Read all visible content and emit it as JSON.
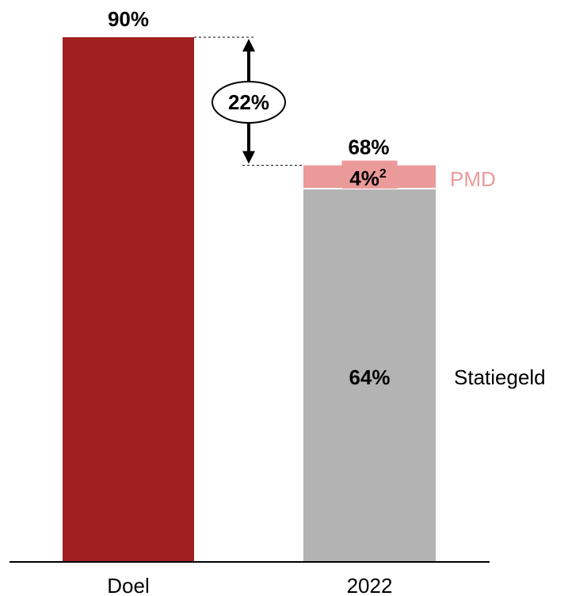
{
  "chart_data": {
    "type": "bar",
    "stacked": true,
    "categories": [
      "Doel",
      "2022"
    ],
    "series": [
      {
        "name": "Statiegeld",
        "values": [
          90,
          64
        ],
        "value_labels": [
          "90%",
          "64%"
        ]
      },
      {
        "name": "PMD",
        "values": [
          0,
          4
        ],
        "value_labels": [
          "",
          "4%"
        ],
        "footnote": "2"
      }
    ],
    "totals": [
      90,
      68
    ],
    "total_labels": [
      "90%",
      "68%"
    ],
    "gap": {
      "value": 22,
      "label": "22%"
    },
    "ylim": [
      0,
      90
    ],
    "colors": {
      "target": "#a11f20",
      "base": "#b3b3b3",
      "pmd": "#eb9a9a",
      "pmd_text": "#eb9a9a",
      "text": "#000000",
      "axis": "#000000"
    }
  }
}
